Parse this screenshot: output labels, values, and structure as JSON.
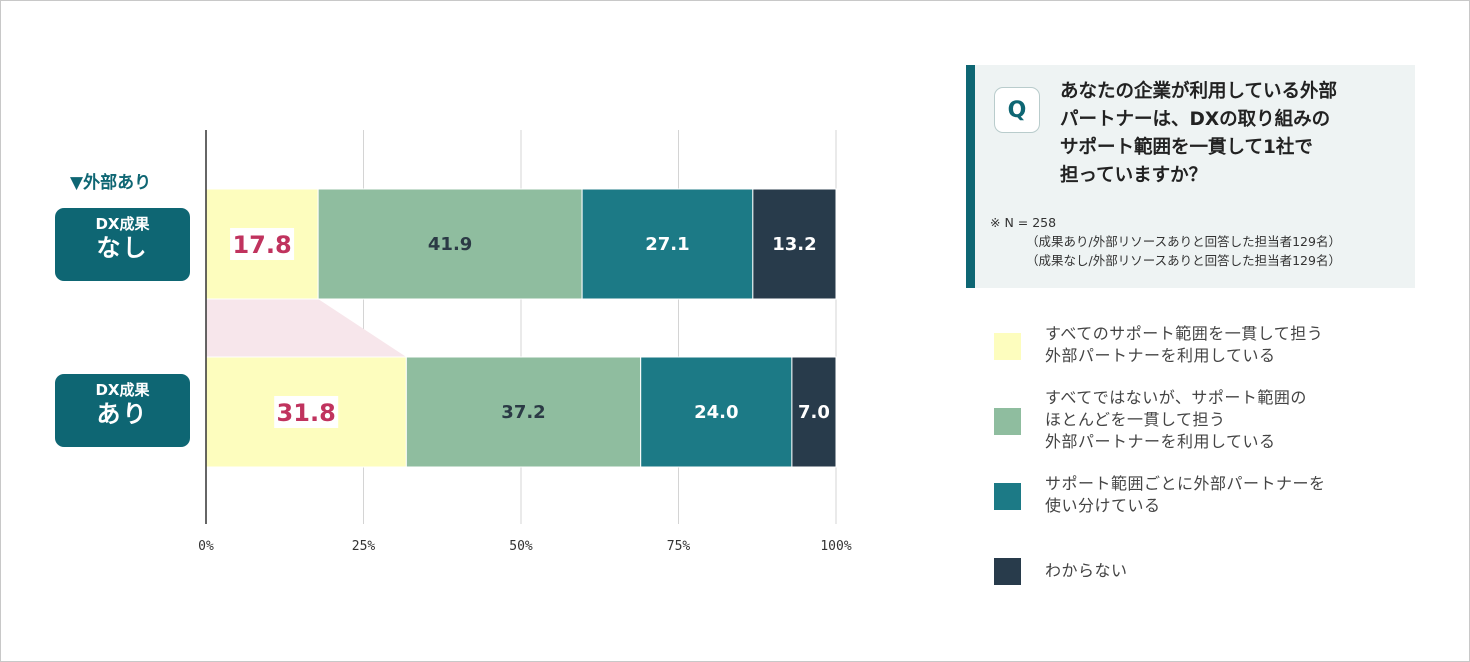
{
  "chart_data": {
    "type": "bar",
    "orientation": "horizontal-stacked-100",
    "group_label": "▼外部あり",
    "categories": [
      {
        "line1": "DX成果",
        "line2": "なし"
      },
      {
        "line1": "DX成果",
        "line2": "あり"
      }
    ],
    "series": [
      {
        "name": "すべてのサポート範囲を一貫して担う外部パートナーを利用している",
        "color": "#fdfdbe",
        "label_color": "#c0335e",
        "values": [
          17.8,
          31.8
        ]
      },
      {
        "name": "すべてではないが、サポート範囲のほとんどを一貫して担う外部パートナーを利用している",
        "color": "#8fbd9f",
        "label_color": "#2b3a45",
        "values": [
          41.9,
          37.2
        ]
      },
      {
        "name": "サポート範囲ごとに外部パートナーを使い分けている",
        "color": "#1c7a86",
        "label_color": "#ffffff",
        "values": [
          27.1,
          24.0
        ]
      },
      {
        "name": "わからない",
        "color": "#283b4b",
        "label_color": "#ffffff",
        "values": [
          13.2,
          7.0
        ]
      }
    ],
    "value_labels": [
      [
        "17.8",
        "41.9",
        "27.1",
        "13.2"
      ],
      [
        "31.8",
        "37.2",
        "24.0",
        "7.0"
      ]
    ],
    "x_ticks": [
      "0%",
      "25%",
      "50%",
      "75%",
      "100%"
    ],
    "xlim": [
      0,
      100
    ],
    "grid": true,
    "highlight_connector_color": "#f7e6eb",
    "legend": {
      "placement": "right",
      "items": [
        {
          "lines": [
            "すべてのサポート範囲を一貫して担う",
            "外部パートナーを利用している"
          ],
          "color": "#fdfdbe"
        },
        {
          "lines": [
            "すべてではないが、サポート範囲の",
            "ほとんどを一貫して担う",
            "外部パートナーを利用している"
          ],
          "color": "#8fbd9f"
        },
        {
          "lines": [
            "サポート範囲ごとに外部パートナーを",
            "使い分けている"
          ],
          "color": "#1c7a86"
        },
        {
          "lines": [
            "わからない"
          ],
          "color": "#283b4b"
        }
      ]
    }
  },
  "question": {
    "badge": "Q",
    "lines": [
      "あなたの企業が利用している外部",
      "パートナーは、DXの取り組みの",
      "サポート範囲を一貫して1社で",
      "担っていますか？"
    ],
    "note_lines": [
      "※ N = 258",
      "（成果あり/外部リソースありと回答した担当者129名）",
      "（成果なし/外部リソースありと回答した担当者129名）"
    ]
  }
}
